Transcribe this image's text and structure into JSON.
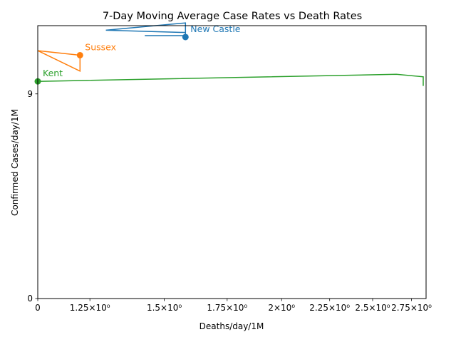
{
  "chart_data": {
    "type": "line",
    "title": "7-Day Moving Average Case Rates vs Death Rates",
    "xlabel": "Deaths/day/1M",
    "ylabel": "Confirmed Cases/day/1M",
    "xscale": "log",
    "xlim": [
      1.1,
      2.85
    ],
    "ylim": [
      0,
      12.0
    ],
    "grid": false,
    "x_ticks": [
      {
        "value": 1.1,
        "label": "0"
      },
      {
        "value": 1.25,
        "label": "1.25×10⁰"
      },
      {
        "value": 1.5,
        "label": "1.5×10⁰"
      },
      {
        "value": 1.75,
        "label": "1.75×10⁰"
      },
      {
        "value": 2.0,
        "label": "2×10⁰"
      },
      {
        "value": 2.25,
        "label": "2.25×10⁰"
      },
      {
        "value": 2.5,
        "label": "2.5×10⁰"
      },
      {
        "value": 2.75,
        "label": "2.75×10⁰"
      }
    ],
    "y_ticks": [
      {
        "value": 0,
        "label": "0"
      },
      {
        "value": 9,
        "label": "9"
      }
    ],
    "series": [
      {
        "name": "New Castle",
        "color": "#1f77b4",
        "points": [
          [
            1.43,
            11.56
          ],
          [
            1.58,
            11.56
          ],
          [
            1.58,
            12.12
          ],
          [
            1.3,
            11.8
          ],
          [
            1.58,
            11.7
          ],
          [
            1.58,
            11.5
          ]
        ]
      },
      {
        "name": "Sussex",
        "color": "#ff7f0e",
        "points": [
          [
            1.22,
            10.8
          ],
          [
            1.22,
            10.0
          ],
          [
            1.1,
            10.9
          ],
          [
            1.22,
            10.7
          ]
        ]
      },
      {
        "name": "Kent",
        "color": "#2ca02c",
        "points": [
          [
            2.83,
            9.35
          ],
          [
            2.83,
            9.75
          ],
          [
            2.65,
            9.86
          ],
          [
            1.1,
            9.55
          ]
        ]
      }
    ]
  }
}
